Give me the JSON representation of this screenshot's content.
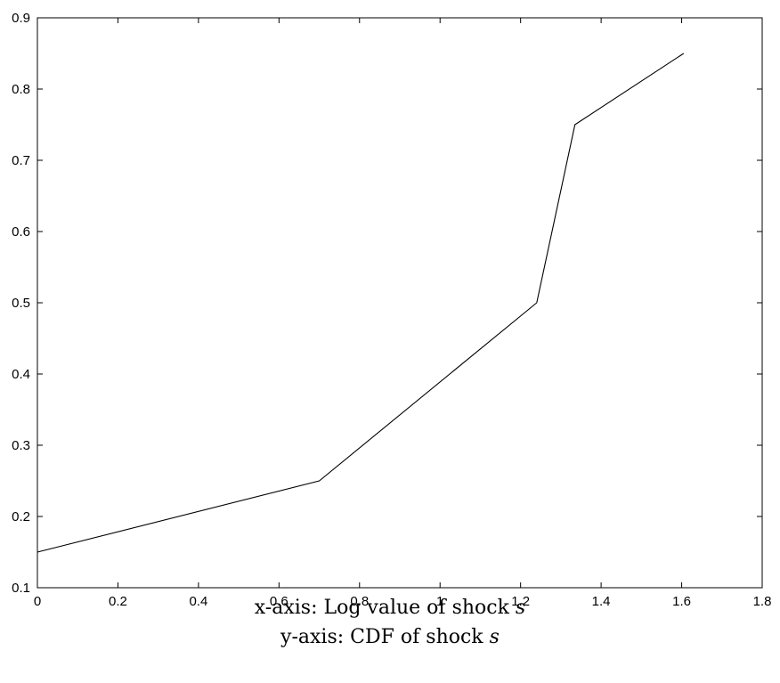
{
  "chart_data": {
    "type": "line",
    "title": "",
    "xlabel": "x-axis: Log value of shock",
    "xlabel_var": "s",
    "ylabel": "y-axis: CDF of shock",
    "ylabel_var": "s",
    "xlim": [
      0,
      1.8
    ],
    "ylim": [
      0.1,
      0.9
    ],
    "x_ticks": [
      0,
      0.2,
      0.4,
      0.6,
      0.8,
      1,
      1.2,
      1.4,
      1.6,
      1.8
    ],
    "x_tick_labels": [
      "0",
      "0.2",
      "0.4",
      "0.6",
      "0.8",
      "1",
      "1.2",
      "1.4",
      "1.6",
      "1.8"
    ],
    "y_ticks": [
      0.1,
      0.2,
      0.3,
      0.4,
      0.5,
      0.6,
      0.7,
      0.8,
      0.9
    ],
    "y_tick_labels": [
      "0.1",
      "0.2",
      "0.3",
      "0.4",
      "0.5",
      "0.6",
      "0.7",
      "0.8",
      "0.9"
    ],
    "grid": false,
    "line_color": "#000000",
    "series": [
      {
        "x": [
          0,
          0.7,
          1.24,
          1.335,
          1.605
        ],
        "y": [
          0.15,
          0.25,
          0.5,
          0.75,
          0.85
        ]
      }
    ]
  }
}
